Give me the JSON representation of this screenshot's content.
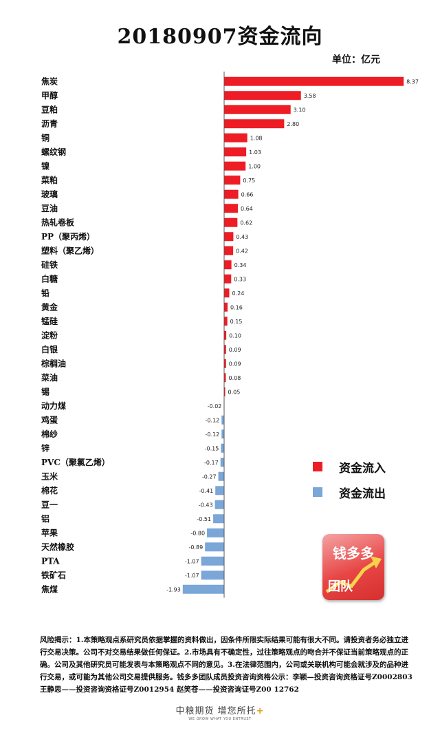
{
  "title": "20180907资金流向",
  "unit": "单位：亿元",
  "chart_data": {
    "type": "bar",
    "orientation": "horizontal",
    "categories": [
      "焦炭",
      "甲醇",
      "豆粕",
      "沥青",
      "铜",
      "螺纹钢",
      "镍",
      "菜粕",
      "玻璃",
      "豆油",
      "热轧卷板",
      "PP（聚丙烯）",
      "塑料（聚乙烯）",
      "硅铁",
      "白糖",
      "铅",
      "黄金",
      "锰硅",
      "淀粉",
      "白银",
      "棕榈油",
      "菜油",
      "锡",
      "动力煤",
      "鸡蛋",
      "棉纱",
      "锌",
      "PVC（聚氯乙烯）",
      "玉米",
      "棉花",
      "豆一",
      "铝",
      "苹果",
      "天然橡胶",
      "PTA",
      "铁矿石",
      "焦煤"
    ],
    "values": [
      8.37,
      3.58,
      3.1,
      2.8,
      1.08,
      1.03,
      1.0,
      0.75,
      0.66,
      0.64,
      0.62,
      0.43,
      0.42,
      0.34,
      0.33,
      0.24,
      0.16,
      0.15,
      0.1,
      0.09,
      0.09,
      0.08,
      0.05,
      -0.02,
      -0.12,
      -0.12,
      -0.15,
      -0.17,
      -0.27,
      -0.41,
      -0.43,
      -0.51,
      -0.8,
      -0.89,
      -1.07,
      -1.07,
      -1.93
    ],
    "value_labels": [
      "8.37",
      "3.58",
      "3.10",
      "2.80",
      "1.08",
      "1.03",
      "1.00",
      "0.75",
      "0.66",
      "0.64",
      "0.62",
      "0.43",
      "0.42",
      "0.34",
      "0.33",
      "0.24",
      "0.16",
      "0.15",
      "0.10",
      "0.09",
      "0.09",
      "0.08",
      "0.05",
      "-0.02",
      "-0.12",
      "-0.12",
      "-0.15",
      "-0.17",
      "-0.27",
      "-0.41",
      "-0.43",
      "-0.51",
      "-0.80",
      "-0.89",
      "-1.07",
      "-1.07",
      "-1.93"
    ],
    "colors": {
      "inflow": "#ee1c24",
      "outflow": "#7aa6d8"
    },
    "legend": [
      {
        "label": "资金流入",
        "color": "#ee1c24"
      },
      {
        "label": "资金流出",
        "color": "#7aa6d8"
      }
    ],
    "legend_position": "right",
    "grid": false
  },
  "logo": {
    "top": "钱多多",
    "bottom": "团队"
  },
  "risk_text": "风险揭示：1.本策略观点系研究员依据掌握的资料做出，因条件所限实际结果可能有很大不同。请投资者务必独立进行交易决策。公司不对交易结果做任何保证。2.市场具有不确定性，过往策略观点的吻合并不保证当前策略观点的正确。公司及其他研究员可能发表与本策略观点不同的意见。3.在法律范围内，公司或关联机构可能会就涉及的品种进行交易，或可能为其他公司交易提供服务。钱多多团队成员投资咨询资格公示：李颖—投资咨询资格证号Z0002803 王静思——投资咨询资格证号Z0012954 赵笑苍——投资咨询证号Z00 12762",
  "footer": {
    "brand": "中粮期货 增您所托",
    "plus": "+",
    "slogan": "WE GROW WHAT YOU ENTRUST"
  }
}
